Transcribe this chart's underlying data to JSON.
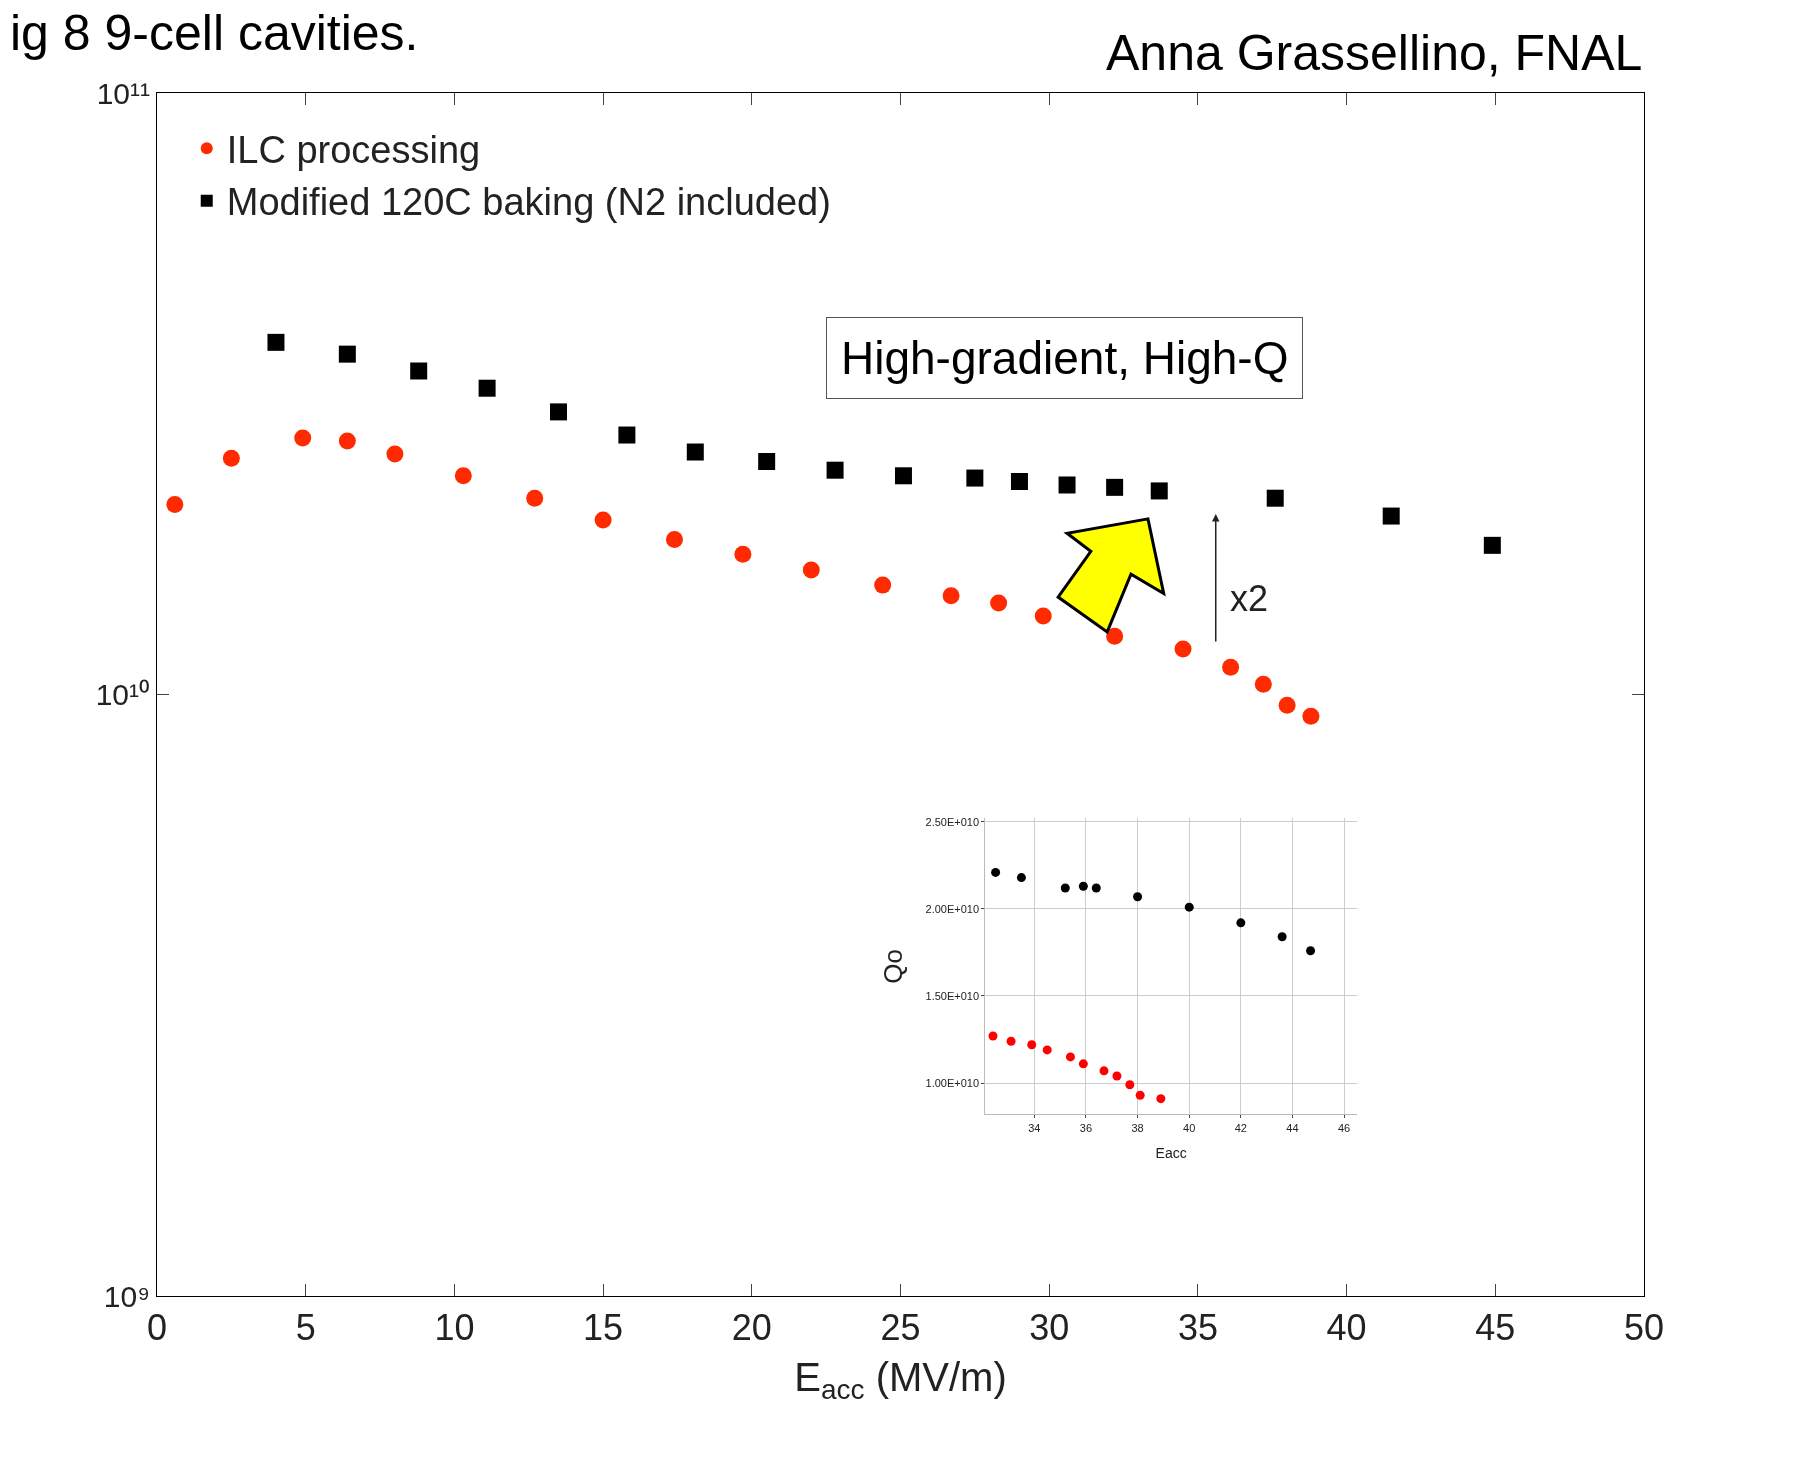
{
  "chart_data": [
    {
      "type": "scatter",
      "title": "ig 8 9-cell cavities.",
      "xlabel": "E$_{acc}$ (MV/m)",
      "log": "y",
      "legend": "top left",
      "grid": false,
      "xlim": [
        0,
        50
      ],
      "xticks": [
        0,
        5,
        10,
        15,
        20,
        25,
        30,
        35,
        40,
        45,
        50
      ],
      "ylim": [
        1000000000.0,
        100000000000.0
      ],
      "yticks": [
        {
          "value": 1000000000.0,
          "label": "10⁹"
        },
        {
          "value": 10000000000.0,
          "label": "10¹⁰"
        },
        {
          "value": 100000000000.0,
          "label": "10¹¹"
        }
      ],
      "annotations": [
        "Anna Grassellino, FNAL",
        "High-gradient, High-Q",
        "x2"
      ],
      "series": [
        {
          "name": "ILC processing",
          "color": "#ff2a00",
          "marker": "circle",
          "x": [
            0.6,
            2.5,
            4.9,
            6.4,
            8,
            10.3,
            12.7,
            15,
            17.4,
            19.7,
            22,
            24.4,
            26.7,
            28.3,
            29.8,
            32.2,
            34.5,
            36.1,
            37.2,
            38,
            38.8
          ],
          "values": [
            20700000000.0,
            24700000000.0,
            26700000000.0,
            26400000000.0,
            25100000000.0,
            23100000000.0,
            21200000000.0,
            19500000000.0,
            18100000000.0,
            17100000000.0,
            16100000000.0,
            15200000000.0,
            14600000000.0,
            14200000000.0,
            13500000000.0,
            12500000000.0,
            11900000000.0,
            11100000000.0,
            10400000000.0,
            9600000000.0,
            9200000000.0
          ]
        },
        {
          "name": "Modified 120C baking (N2 included)",
          "color": "#000000",
          "marker": "square",
          "x": [
            4,
            6.4,
            8.8,
            11.1,
            13.5,
            15.8,
            18.1,
            20.5,
            22.8,
            25.1,
            27.5,
            29,
            30.6,
            32.2,
            33.7,
            37.6,
            41.5,
            44.9
          ],
          "values": [
            38500000000.0,
            36800000000.0,
            34500000000.0,
            32300000000.0,
            29500000000.0,
            27000000000.0,
            25300000000.0,
            24400000000.0,
            23600000000.0,
            23100000000.0,
            22900000000.0,
            22600000000.0,
            22300000000.0,
            22100000000.0,
            21800000000.0,
            21200000000.0,
            19800000000.0,
            17700000000.0
          ]
        }
      ]
    },
    {
      "type": "scatter",
      "xlabel": "Eacc",
      "ylabel": "Qo",
      "grid": true,
      "legend": false,
      "xlim": [
        32.1,
        46.5
      ],
      "xticks": [
        34,
        36,
        38,
        40,
        42,
        44,
        46
      ],
      "ylim": [
        8200000000.0,
        25200000000.0
      ],
      "yticks": [
        {
          "value": 10000000000.0,
          "label": "1.00E+010"
        },
        {
          "value": 15000000000.0,
          "label": "1.50E+010"
        },
        {
          "value": 20000000000.0,
          "label": "2.00E+010"
        },
        {
          "value": 25000000000.0,
          "label": "2.50E+010"
        }
      ],
      "series": [
        {
          "color": "#000000",
          "marker": "circle",
          "x": [
            32.5,
            33.5,
            35.2,
            35.9,
            36.4,
            38,
            40,
            42,
            43.6,
            44.7
          ],
          "values": [
            22100000000.0,
            21800000000.0,
            21200000000.0,
            21300000000.0,
            21200000000.0,
            20700000000.0,
            20100000000.0,
            19200000000.0,
            18400000000.0,
            17600000000.0
          ]
        },
        {
          "color": "#ff0000",
          "marker": "circle",
          "x": [
            32.4,
            33.1,
            33.9,
            34.5,
            35.4,
            35.9,
            36.7,
            37.2,
            37.7,
            38.1,
            38.9
          ],
          "values": [
            12700000000.0,
            12400000000.0,
            12200000000.0,
            11900000000.0,
            11500000000.0,
            11100000000.0,
            10700000000.0,
            10400000000.0,
            9900000000.0,
            9300000000.0,
            9100000000.0
          ]
        }
      ]
    }
  ]
}
